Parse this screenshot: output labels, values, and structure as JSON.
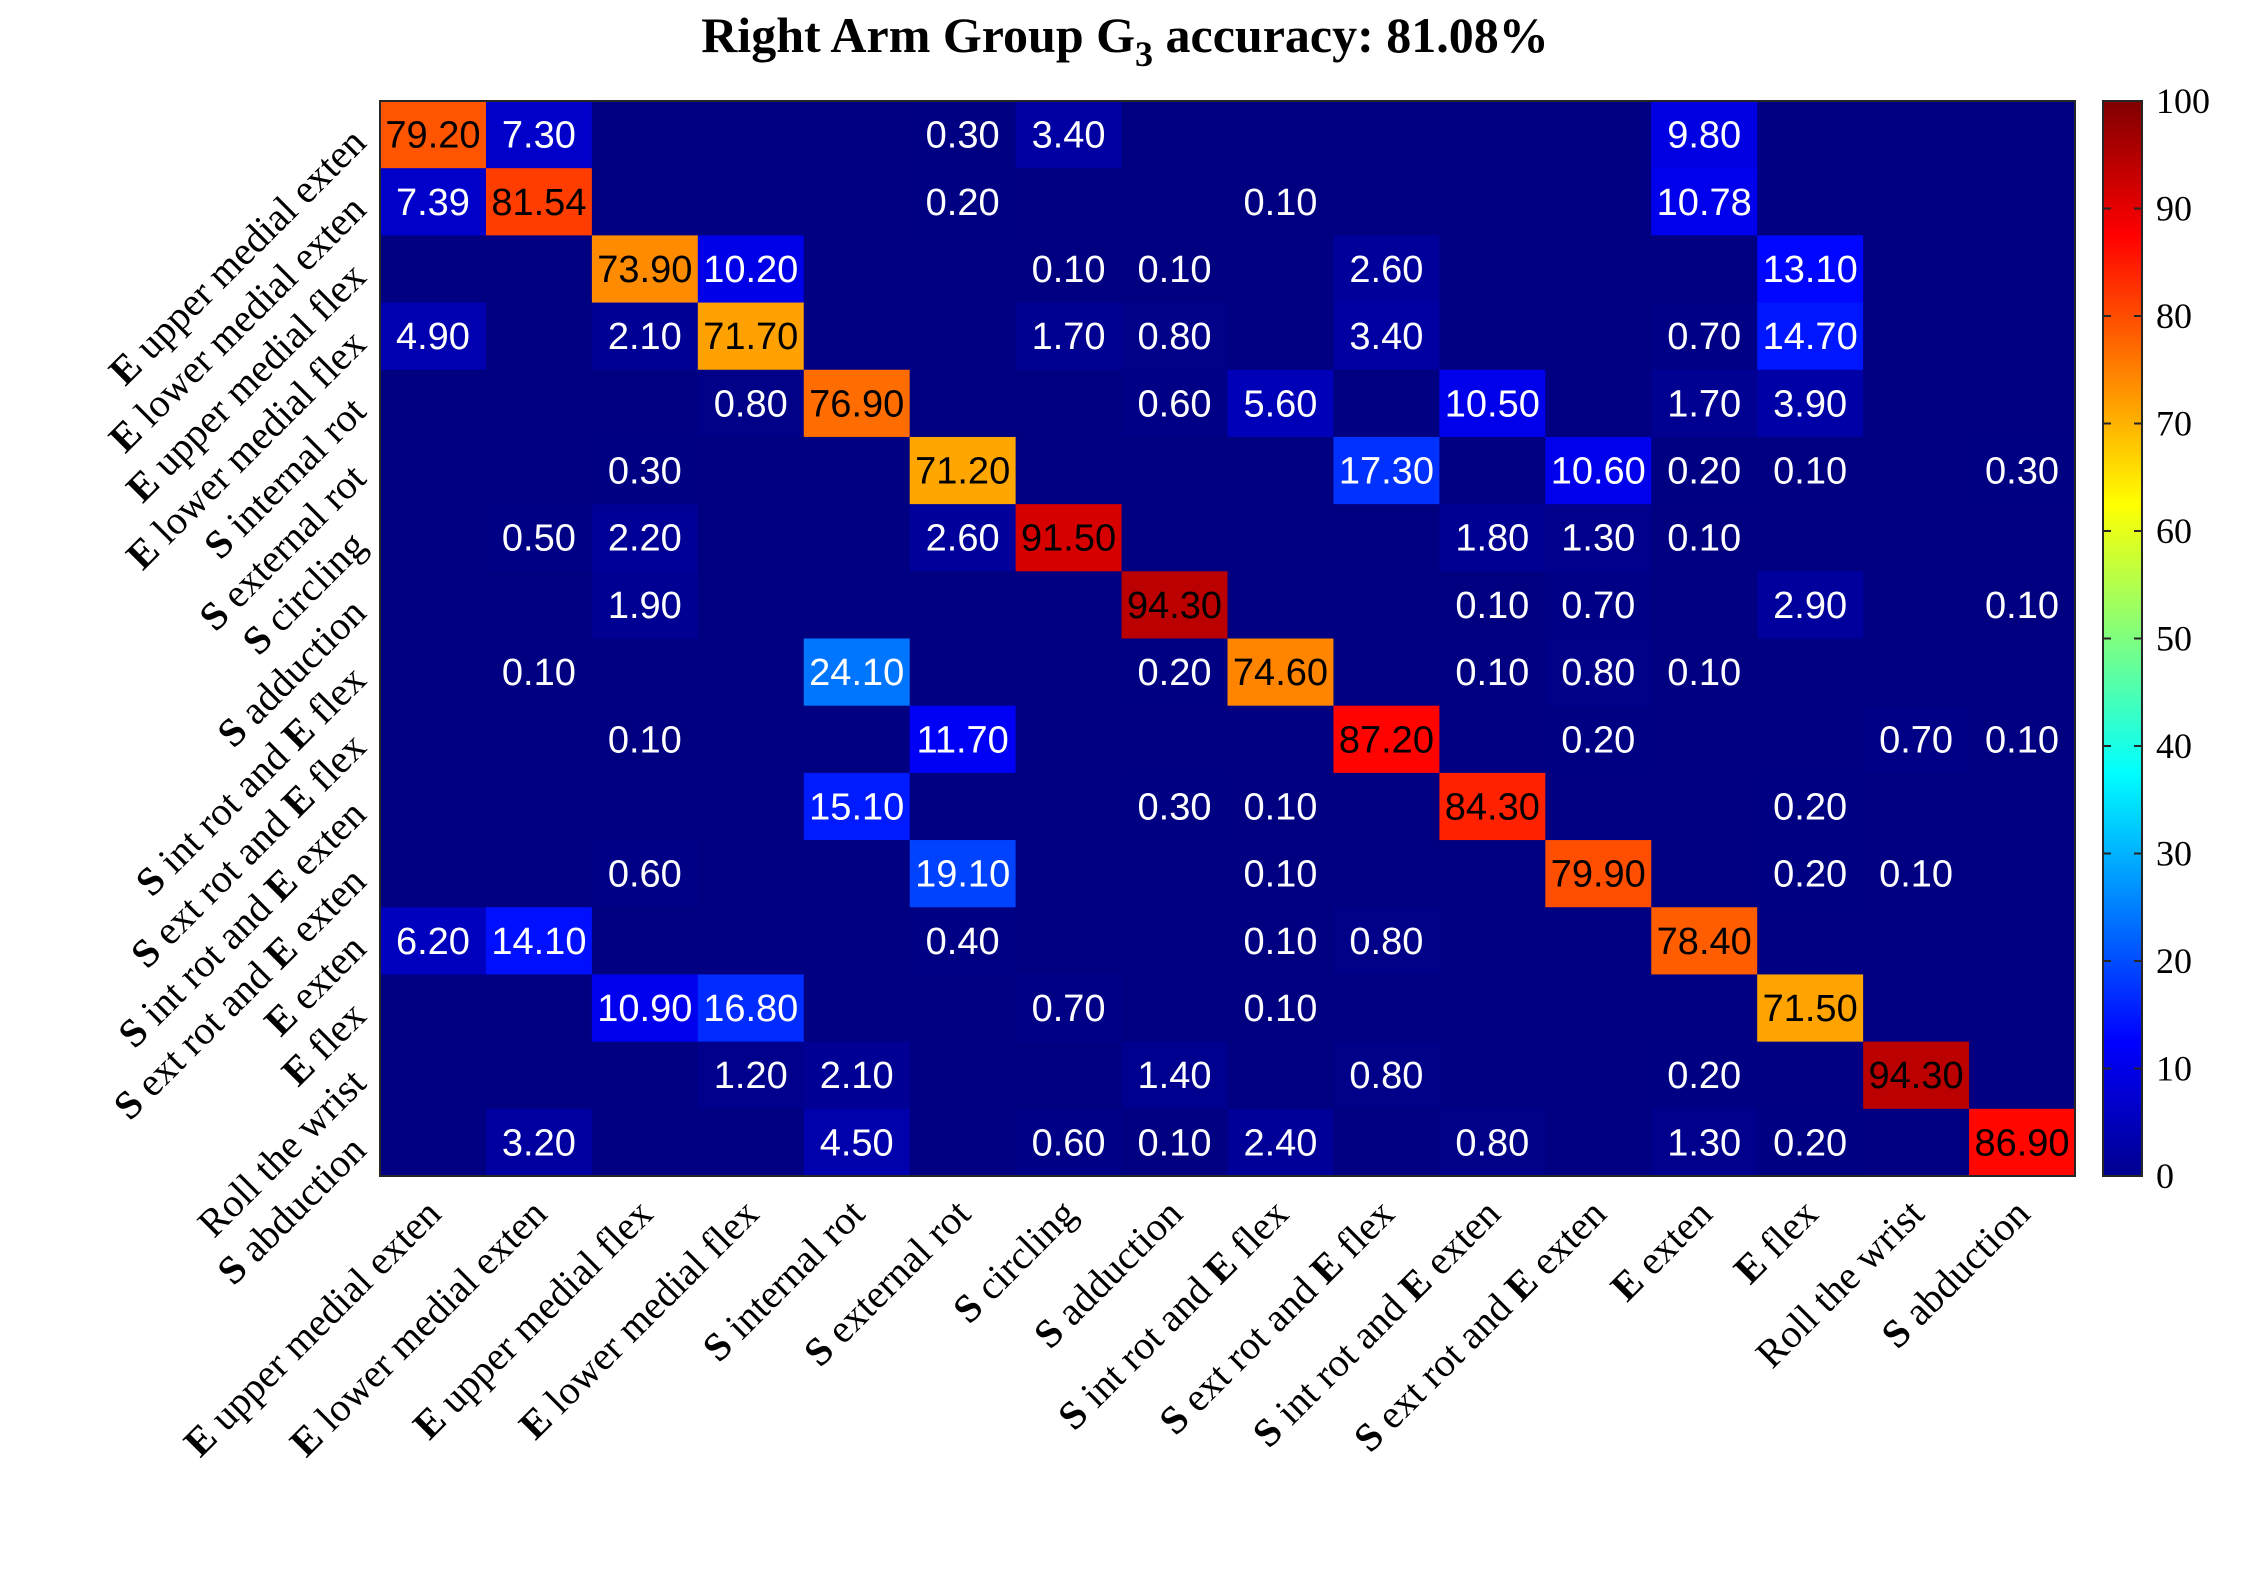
{
  "title": {
    "prefix": "Right Arm Group G",
    "subscript": "3",
    "suffix": " accuracy: 81.08%"
  },
  "chart_data": {
    "type": "heatmap",
    "colormap": "jet",
    "clim": [
      0,
      100
    ],
    "colorbar_ticks": [
      0,
      10,
      20,
      30,
      40,
      50,
      60,
      70,
      80,
      90,
      100
    ],
    "classes": [
      {
        "bold": "E",
        "rest": " upper medial exten"
      },
      {
        "bold": "E",
        "rest": " lower medial exten"
      },
      {
        "bold": "E",
        "rest": " upper medial flex"
      },
      {
        "bold": "E",
        "rest": " lower medial flex"
      },
      {
        "bold": "S",
        "rest": " internal rot"
      },
      {
        "bold": "S",
        "rest": " external rot"
      },
      {
        "bold": "S",
        "rest": " circling"
      },
      {
        "bold": "S",
        "rest": " adduction"
      },
      {
        "bold": "S",
        "rest": " int rot and ",
        "bold2": "E",
        "rest2": " flex"
      },
      {
        "bold": "S",
        "rest": " ext rot and ",
        "bold2": "E",
        "rest2": " flex"
      },
      {
        "bold": "S",
        "rest": " int rot and ",
        "bold2": "E",
        "rest2": " exten"
      },
      {
        "bold": "S",
        "rest": " ext rot and ",
        "bold2": "E",
        "rest2": " exten"
      },
      {
        "bold": "E",
        "rest": " exten"
      },
      {
        "bold": "E",
        "rest": " flex"
      },
      {
        "bold": "",
        "rest": "Roll the wrist"
      },
      {
        "bold": "S",
        "rest": " abduction"
      }
    ],
    "matrix": [
      [
        79.2,
        7.3,
        null,
        null,
        null,
        0.3,
        3.4,
        null,
        null,
        null,
        null,
        null,
        9.8,
        null,
        null,
        null
      ],
      [
        7.39,
        81.54,
        null,
        null,
        null,
        0.2,
        null,
        null,
        0.1,
        null,
        null,
        null,
        10.78,
        null,
        null,
        null
      ],
      [
        null,
        null,
        73.9,
        10.2,
        null,
        null,
        0.1,
        0.1,
        null,
        2.6,
        null,
        null,
        null,
        13.1,
        null,
        null
      ],
      [
        4.9,
        null,
        2.1,
        71.7,
        null,
        null,
        1.7,
        0.8,
        null,
        3.4,
        null,
        null,
        0.7,
        14.7,
        null,
        null
      ],
      [
        null,
        null,
        null,
        0.8,
        76.9,
        null,
        null,
        0.6,
        5.6,
        null,
        10.5,
        null,
        1.7,
        3.9,
        null,
        null
      ],
      [
        null,
        null,
        0.3,
        null,
        null,
        71.2,
        null,
        null,
        null,
        17.3,
        null,
        10.6,
        0.2,
        0.1,
        null,
        0.3
      ],
      [
        null,
        0.5,
        2.2,
        null,
        null,
        2.6,
        91.5,
        null,
        null,
        null,
        1.8,
        1.3,
        0.1,
        null,
        null,
        null
      ],
      [
        null,
        null,
        1.9,
        null,
        null,
        null,
        null,
        94.3,
        null,
        null,
        0.1,
        0.7,
        null,
        2.9,
        null,
        0.1
      ],
      [
        null,
        0.1,
        null,
        null,
        24.1,
        null,
        null,
        0.2,
        74.6,
        null,
        0.1,
        0.8,
        0.1,
        null,
        null,
        null
      ],
      [
        null,
        null,
        0.1,
        null,
        null,
        11.7,
        null,
        null,
        null,
        87.2,
        null,
        0.2,
        null,
        null,
        0.7,
        0.1
      ],
      [
        null,
        null,
        null,
        null,
        15.1,
        null,
        null,
        0.3,
        0.1,
        null,
        84.3,
        null,
        null,
        0.2,
        null,
        null
      ],
      [
        null,
        null,
        0.6,
        null,
        null,
        19.1,
        null,
        null,
        0.1,
        null,
        null,
        79.9,
        null,
        0.2,
        0.1,
        null
      ],
      [
        6.2,
        14.1,
        null,
        null,
        null,
        0.4,
        null,
        null,
        0.1,
        0.8,
        null,
        null,
        78.4,
        null,
        null,
        null
      ],
      [
        null,
        null,
        10.9,
        16.8,
        null,
        null,
        0.7,
        null,
        0.1,
        null,
        null,
        null,
        null,
        71.5,
        null,
        null
      ],
      [
        null,
        null,
        null,
        1.2,
        2.1,
        null,
        null,
        1.4,
        null,
        0.8,
        null,
        null,
        0.2,
        null,
        94.3,
        null
      ],
      [
        null,
        3.2,
        null,
        null,
        4.5,
        null,
        0.6,
        0.1,
        2.4,
        null,
        0.8,
        null,
        1.3,
        0.2,
        null,
        86.9
      ]
    ]
  }
}
